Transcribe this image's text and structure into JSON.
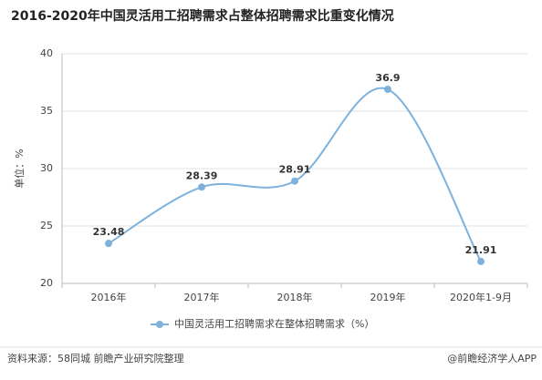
{
  "chart_data": {
    "type": "line",
    "title": "2016-2020年中国灵活用工招聘需求占整体招聘需求比重变化情况",
    "y_label": "单位：%",
    "categories": [
      "2016年",
      "2017年",
      "2018年",
      "2019年",
      "2020年1-9月"
    ],
    "series": [
      {
        "name": "中国灵活用工招聘需求在整体招聘需求（%）",
        "color": "#7eb2dc",
        "values": [
          23.48,
          28.39,
          28.91,
          36.9,
          21.91
        ]
      }
    ],
    "ylim": [
      20,
      40
    ],
    "yticks": [
      20,
      25,
      30,
      35,
      40
    ],
    "grid": true,
    "legend": "bottom",
    "source": "资料来源：58同城 前瞻产业研究院整理",
    "credit": "@前瞻经济学人APP"
  }
}
